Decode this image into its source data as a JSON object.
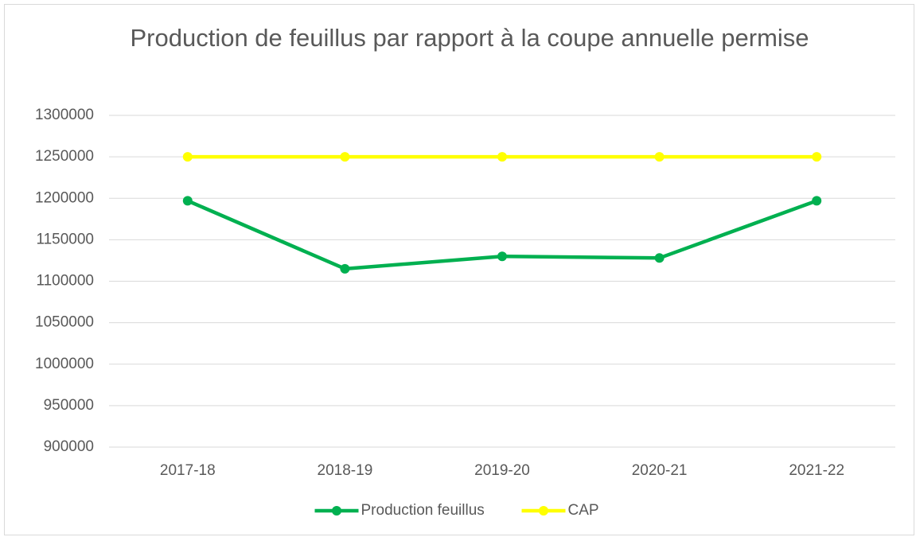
{
  "chart_data": {
    "type": "line",
    "title": "Production de feuillus par rapport à la coupe annuelle permise",
    "categories": [
      "2017-18",
      "2018-19",
      "2019-20",
      "2020-21",
      "2021-22"
    ],
    "series": [
      {
        "name": "Production feuillus",
        "color": "#00b050",
        "values": [
          1197000,
          1115000,
          1130000,
          1128000,
          1197000
        ]
      },
      {
        "name": "CAP",
        "color": "#ffff00",
        "values": [
          1250000,
          1250000,
          1250000,
          1250000,
          1250000
        ]
      }
    ],
    "ylim": [
      900000,
      1300000
    ],
    "yticks": [
      900000,
      950000,
      1000000,
      1050000,
      1100000,
      1150000,
      1200000,
      1250000,
      1300000
    ],
    "grid": true,
    "legend": "bottom"
  }
}
